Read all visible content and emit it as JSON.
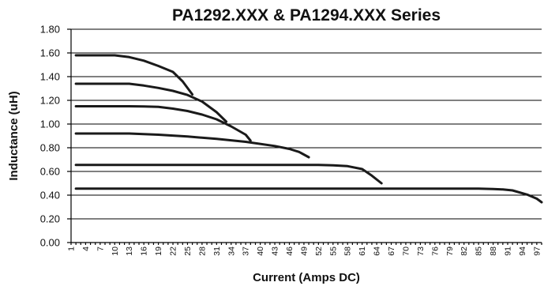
{
  "chart_data": {
    "type": "line",
    "title": "PA1292.XXX & PA1294.XXX Series",
    "xlabel": "Current (Amps DC)",
    "ylabel": "Inductance (uH)",
    "ylim": [
      0,
      1.8
    ],
    "xlim": [
      1,
      98
    ],
    "yticks": [
      "0.00",
      "0.20",
      "0.40",
      "0.60",
      "0.80",
      "1.00",
      "1.20",
      "1.40",
      "1.60",
      "1.80"
    ],
    "xticks": [
      "1",
      "4",
      "7",
      "10",
      "13",
      "16",
      "19",
      "22",
      "25",
      "28",
      "31",
      "34",
      "37",
      "40",
      "43",
      "46",
      "49",
      "52",
      "55",
      "58",
      "61",
      "64",
      "67",
      "70",
      "73",
      "76",
      "79",
      "82",
      "85",
      "88",
      "91",
      "94",
      "97"
    ],
    "grid": "horizontal",
    "series": [
      {
        "x": [
          2,
          10,
          13,
          16,
          19,
          22,
          24,
          26
        ],
        "y": [
          1.58,
          1.58,
          1.565,
          1.535,
          1.49,
          1.44,
          1.36,
          1.25
        ]
      },
      {
        "x": [
          2,
          13,
          16,
          19,
          22,
          25,
          28,
          31,
          33
        ],
        "y": [
          1.34,
          1.34,
          1.325,
          1.305,
          1.28,
          1.245,
          1.19,
          1.1,
          1.02
        ]
      },
      {
        "x": [
          2,
          13,
          16,
          19,
          22,
          25,
          28,
          31,
          34,
          37,
          38
        ],
        "y": [
          1.15,
          1.15,
          1.148,
          1.145,
          1.13,
          1.11,
          1.08,
          1.04,
          0.98,
          0.91,
          0.86
        ]
      },
      {
        "x": [
          2,
          13,
          19,
          25,
          31,
          37,
          43,
          46,
          48,
          50
        ],
        "y": [
          0.92,
          0.92,
          0.91,
          0.895,
          0.875,
          0.85,
          0.815,
          0.79,
          0.765,
          0.72
        ]
      },
      {
        "x": [
          2,
          52,
          55,
          58,
          61,
          63,
          65
        ],
        "y": [
          0.655,
          0.655,
          0.652,
          0.645,
          0.62,
          0.565,
          0.5
        ]
      },
      {
        "x": [
          2,
          85,
          88,
          90,
          92,
          95,
          97,
          98
        ],
        "y": [
          0.455,
          0.455,
          0.452,
          0.448,
          0.44,
          0.405,
          0.37,
          0.34
        ]
      }
    ]
  }
}
